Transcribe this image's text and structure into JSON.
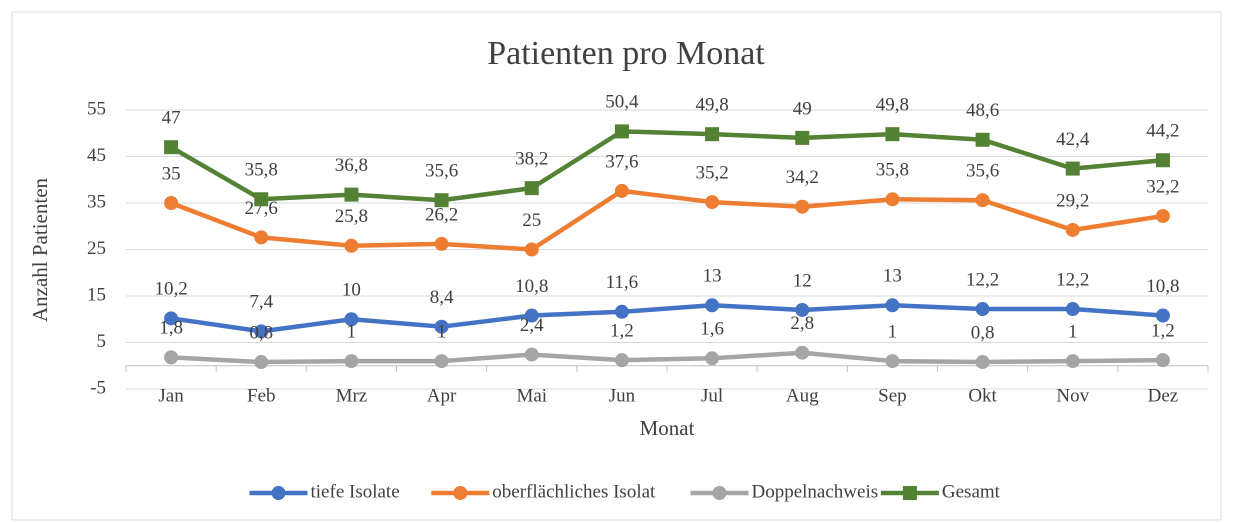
{
  "chart_data": {
    "type": "line",
    "title": "Patienten pro Monat",
    "x_label": "Monat",
    "y_label": "Anzahl Patienten",
    "categories": [
      "Jan",
      "Feb",
      "Mrz",
      "Apr",
      "Mai",
      "Jun",
      "Jul",
      "Aug",
      "Sep",
      "Okt",
      "Nov",
      "Dez"
    ],
    "series": [
      {
        "name": "tiefe Isolate",
        "color": "#4472c4",
        "marker": "circle",
        "values": [
          10.2,
          7.4,
          10,
          8.4,
          10.8,
          11.6,
          13,
          12,
          13,
          12.2,
          12.2,
          10.8
        ],
        "value_labels": [
          "10,2",
          "7,4",
          "10",
          "8,4",
          "10,8",
          "11,6",
          "13",
          "12",
          "13",
          "12,2",
          "12,2",
          "10,8"
        ]
      },
      {
        "name": "oberflächliches Isolat",
        "color": "#ed7d31",
        "marker": "circle",
        "values": [
          35,
          27.6,
          25.8,
          26.2,
          25,
          37.6,
          35.2,
          34.2,
          35.8,
          35.6,
          29.2,
          32.2
        ],
        "value_labels": [
          "35",
          "27,6",
          "25,8",
          "26,2",
          "25",
          "37,6",
          "35,2",
          "34,2",
          "35,8",
          "35,6",
          "29,2",
          "32,2"
        ]
      },
      {
        "name": "Doppelnachweis",
        "color": "#a5a5a5",
        "marker": "circle",
        "values": [
          1.8,
          0.8,
          1,
          1,
          2.4,
          1.2,
          1.6,
          2.8,
          1,
          0.8,
          1,
          1.2
        ],
        "value_labels": [
          "1,8",
          "0,8",
          "1",
          "1",
          "2,4",
          "1,2",
          "1,6",
          "2,8",
          "1",
          "0,8",
          "1",
          "1,2"
        ]
      },
      {
        "name": "Gesamt",
        "color": "#548235",
        "marker": "square",
        "values": [
          47,
          35.8,
          36.8,
          35.6,
          38.2,
          50.4,
          49.8,
          49,
          49.8,
          48.6,
          42.4,
          44.2
        ],
        "value_labels": [
          "47",
          "35,8",
          "36,8",
          "35,6",
          "38,2",
          "50,4",
          "49,8",
          "49",
          "49,8",
          "48,6",
          "42,4",
          "44,2"
        ]
      }
    ],
    "ylim": [
      -5,
      55
    ],
    "yticks": [
      -5,
      5,
      15,
      25,
      35,
      45,
      55
    ],
    "grid": true,
    "legend": "bottom"
  }
}
